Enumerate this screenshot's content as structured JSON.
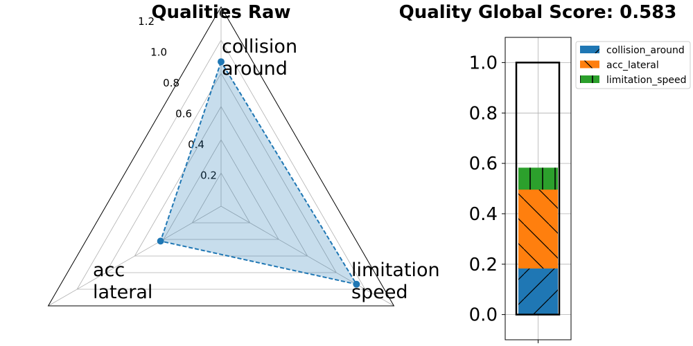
{
  "chart_data": [
    {
      "type": "radar",
      "title": "Qualities Raw",
      "axes": [
        {
          "label_lines": [
            "collision",
            "around"
          ],
          "value": 0.87
        },
        {
          "label_lines": [
            "acc",
            "lateral"
          ],
          "value": 0.42
        },
        {
          "label_lines": [
            "limitation",
            "speed"
          ],
          "value": 0.94
        }
      ],
      "rlim": [
        0,
        1.2
      ],
      "rticks": [
        "0.2",
        "0.4",
        "0.6",
        "0.8",
        "1.0",
        "1.2"
      ],
      "rtick_values": [
        0.2,
        0.4,
        0.6,
        0.8,
        1.0,
        1.2
      ],
      "grid": true,
      "line_color": "#1f77b4",
      "fill_color": "#1f77b4",
      "line_style": "dashed"
    },
    {
      "type": "stacked_bar",
      "title": "Quality Global Score: 0.583",
      "ylim": [
        -0.1,
        1.1
      ],
      "yticks": [
        "0.0",
        "0.2",
        "0.4",
        "0.6",
        "0.8",
        "1.0"
      ],
      "ytick_values": [
        0.0,
        0.2,
        0.4,
        0.6,
        0.8,
        1.0
      ],
      "outline_max": 1.0,
      "grid": true,
      "legend_position": "top-right",
      "segments": [
        {
          "name": "collision_around",
          "value": 0.183,
          "color": "#1f77b4",
          "hatch": "/"
        },
        {
          "name": "acc_lateral",
          "value": 0.313,
          "color": "#ff7f0e",
          "hatch": "\\"
        },
        {
          "name": "limitation_speed",
          "value": 0.087,
          "color": "#2ca02c",
          "hatch": "|"
        }
      ]
    }
  ]
}
